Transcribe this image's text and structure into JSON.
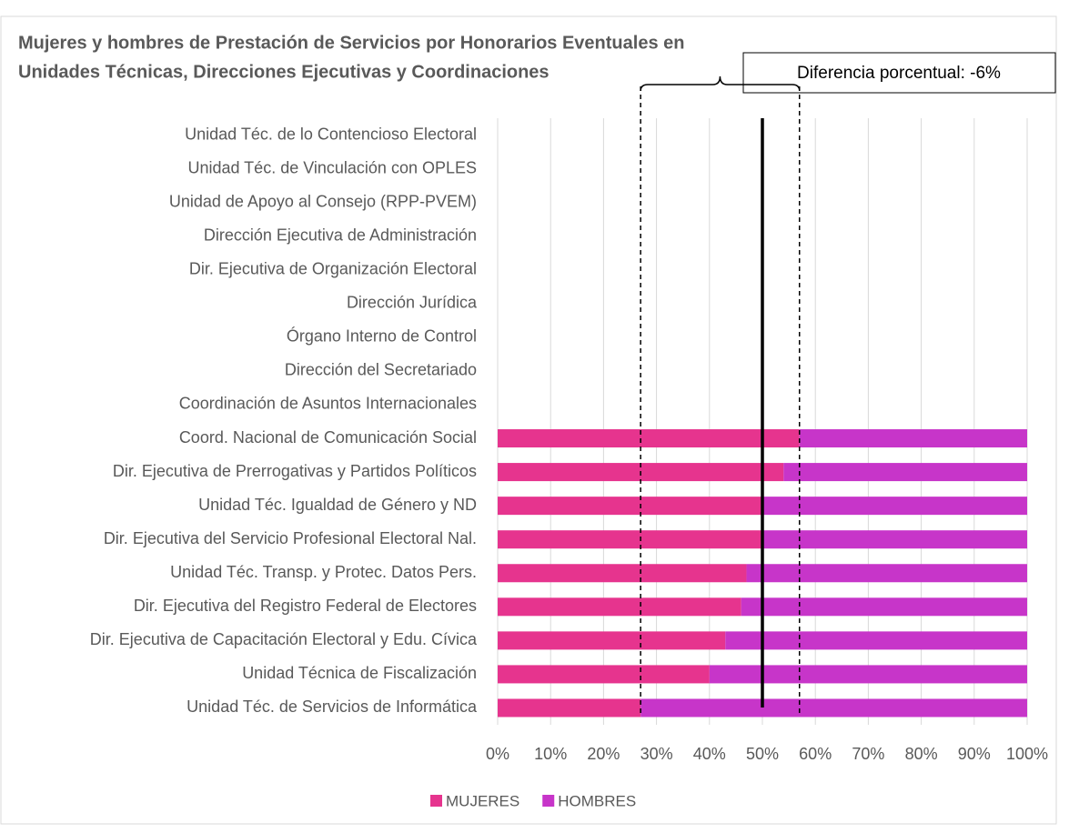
{
  "chart_data": {
    "type": "bar",
    "orientation": "horizontal",
    "stacked": true,
    "title": [
      "Mujeres y hombres de Prestación de Servicios por Honorarios Eventuales en",
      "Unidades Técnicas, Direcciones Ejecutivas y Coordinaciones"
    ],
    "annotation": "Diferencia porcentual: -6%",
    "categories": [
      "Unidad Téc. de lo Contencioso Electoral",
      "Unidad Téc. de Vinculación con OPLES",
      "Unidad de Apoyo al Consejo (RPP-PVEM)",
      "Dirección Ejecutiva de Administración",
      "Dir. Ejecutiva de Organización Electoral",
      "Dirección Jurídica",
      "Órgano Interno de Control",
      "Dirección del Secretariado",
      "Coordinación de Asuntos Internacionales",
      "Coord. Nacional de Comunicación Social",
      "Dir. Ejecutiva de Prerrogativas y Partidos Políticos",
      "Unidad Téc. Igualdad de Género y ND",
      "Dir. Ejecutiva del Servicio Profesional Electoral Nal.",
      "Unidad Téc. Transp. y Protec. Datos Pers.",
      "Dir. Ejecutiva del Registro Federal de Electores",
      "Dir. Ejecutiva de Capacitación Electoral y Edu. Cívica",
      "Unidad Técnica de Fiscalización",
      "Unidad Téc. de Servicios de Informática"
    ],
    "series": [
      {
        "name": "MUJERES",
        "color": "#e6348e",
        "values": [
          null,
          null,
          null,
          null,
          null,
          null,
          null,
          null,
          null,
          57,
          54,
          50,
          50,
          47,
          46,
          43,
          40,
          27
        ]
      },
      {
        "name": "HOMBRES",
        "color": "#c735c9",
        "values": [
          null,
          null,
          null,
          null,
          null,
          null,
          null,
          null,
          null,
          43,
          46,
          50,
          50,
          53,
          54,
          57,
          60,
          73
        ]
      }
    ],
    "xlim": [
      0,
      100
    ],
    "xticks": [
      {
        "value": 0,
        "label": "0%"
      },
      {
        "value": 10,
        "label": "10%"
      },
      {
        "value": 20,
        "label": "20%"
      },
      {
        "value": 30,
        "label": "30%"
      },
      {
        "value": 40,
        "label": "40%"
      },
      {
        "value": 50,
        "label": "50%"
      },
      {
        "value": 60,
        "label": "60%"
      },
      {
        "value": 70,
        "label": "70%"
      },
      {
        "value": 80,
        "label": "80%"
      },
      {
        "value": 90,
        "label": "90%"
      },
      {
        "value": 100,
        "label": "100%"
      }
    ],
    "grid": true,
    "legend": "bottom",
    "reference_lines": [
      {
        "value": 27,
        "style": "dashed"
      },
      {
        "value": 57,
        "style": "dashed"
      },
      {
        "value": 50,
        "style": "solid"
      }
    ]
  }
}
